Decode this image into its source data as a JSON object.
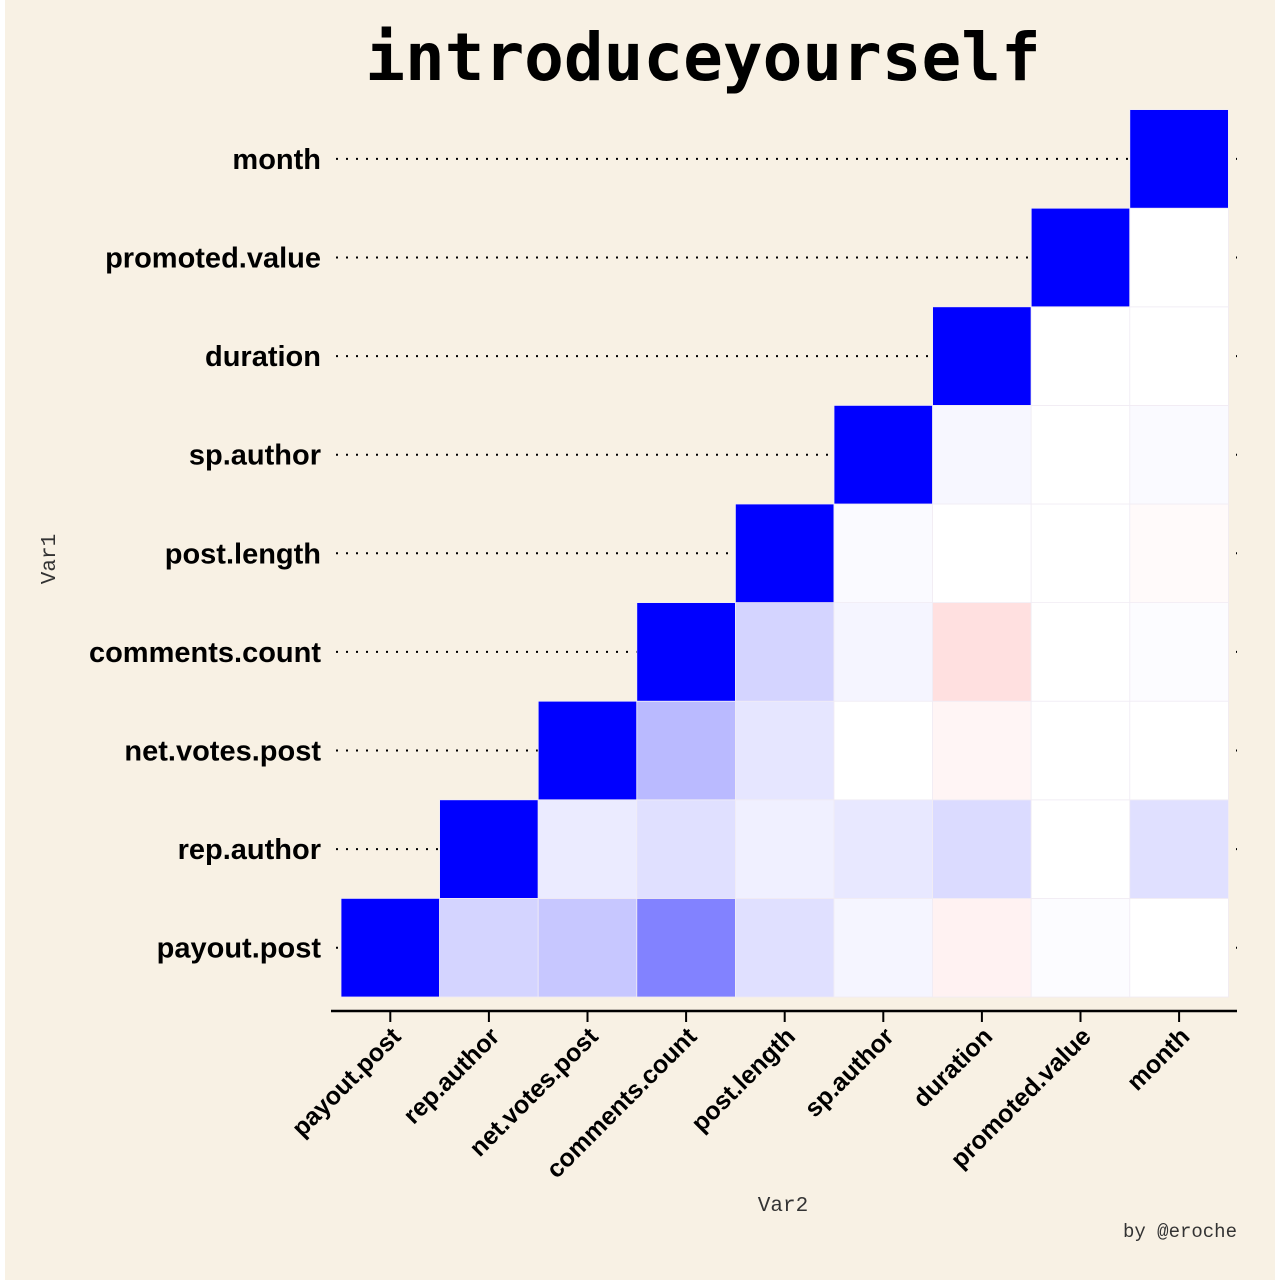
{
  "chart_data": {
    "type": "heatmap",
    "title": "introduceyourself",
    "xlabel": "Var2",
    "ylabel": "Var1",
    "caption": "by @eroche",
    "variables": [
      "payout.post",
      "rep.author",
      "net.votes.post",
      "comments.count",
      "post.length",
      "sp.author",
      "duration",
      "promoted.value",
      "month"
    ],
    "color_scale": {
      "negative": "#ff0000",
      "zero": "#ffffff",
      "positive": "#0000ff",
      "limits": [
        -1,
        1
      ]
    },
    "lower_triangle": true,
    "matrix": [
      [
        1.0,
        0.17,
        0.22,
        0.49,
        0.12,
        0.04,
        -0.05,
        0.01,
        0.0
      ],
      [
        0.17,
        1.0,
        0.08,
        0.12,
        0.06,
        0.09,
        0.14,
        0.0,
        0.12
      ],
      [
        0.22,
        0.08,
        1.0,
        0.27,
        0.1,
        0.0,
        -0.04,
        0.0,
        0.0
      ],
      [
        0.49,
        0.12,
        0.27,
        1.0,
        0.17,
        0.04,
        -0.12,
        0.0,
        0.01
      ],
      [
        0.12,
        0.06,
        0.1,
        0.17,
        1.0,
        0.02,
        0.0,
        0.0,
        -0.02
      ],
      [
        0.04,
        0.09,
        0.0,
        0.04,
        0.02,
        1.0,
        0.03,
        0.0,
        0.02
      ],
      [
        -0.05,
        0.14,
        -0.04,
        -0.12,
        0.0,
        0.03,
        1.0,
        0.0,
        0.0
      ],
      [
        0.01,
        0.0,
        0.0,
        0.0,
        0.0,
        0.0,
        0.0,
        1.0,
        0.0
      ],
      [
        0.0,
        0.12,
        0.0,
        0.01,
        -0.02,
        0.02,
        0.0,
        0.0,
        1.0
      ]
    ]
  }
}
